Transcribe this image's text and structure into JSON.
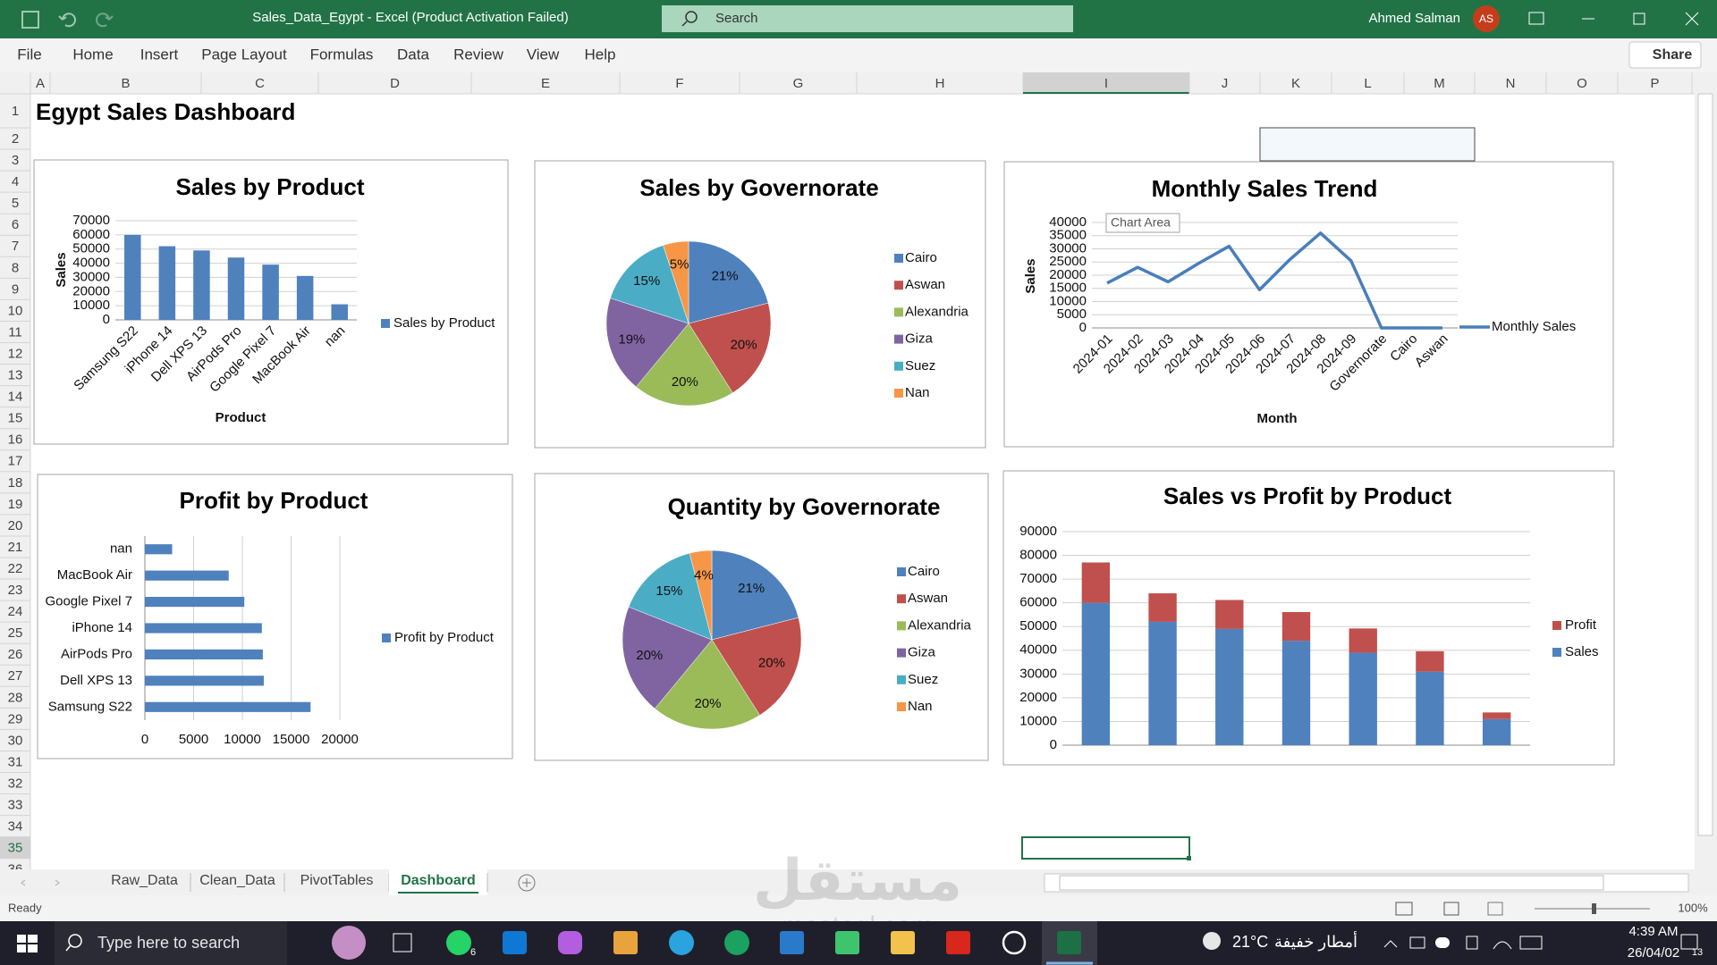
{
  "title_bar": {
    "file_title": "Sales_Data_Egypt   -   Excel (Product Activation Failed)",
    "search": "Search",
    "user_name": "Ahmed Salman",
    "user_initials": "AS"
  },
  "menu": [
    "File",
    "Home",
    "Insert",
    "Page Layout",
    "Formulas",
    "Data",
    "Review",
    "View",
    "Help"
  ],
  "share": "Share",
  "columns": [
    "A",
    "B",
    "C",
    "D",
    "E",
    "F",
    "G",
    "H",
    "I",
    "J",
    "K",
    "L",
    "M",
    "N",
    "O",
    "P"
  ],
  "rows": [
    "1",
    "2",
    "3",
    "4",
    "5",
    "6",
    "7",
    "8",
    "9",
    "10",
    "11",
    "12",
    "13",
    "14",
    "15",
    "16",
    "17",
    "18",
    "19",
    "20",
    "21",
    "22",
    "23",
    "24",
    "25",
    "26",
    "27",
    "28",
    "29",
    "30",
    "31",
    "32",
    "33",
    "34",
    "35",
    "36"
  ],
  "cell_a1": "Egypt Sales Dashboard",
  "charts": [
    {
      "type": "bar",
      "title": "Sales by Product",
      "y_label": "Sales",
      "x_label": "Product",
      "categories": [
        "Samsung S22",
        "iPhone 14",
        "Dell XPS 13",
        "AirPods Pro",
        "Google Pixel 7",
        "MacBook Air",
        "nan"
      ],
      "series": [
        {
          "name": "Sales by Product",
          "color": "#4f81bd",
          "values": [
            60000,
            52000,
            49000,
            44000,
            39000,
            31000,
            11000
          ]
        }
      ],
      "ylim": [
        0,
        70000
      ],
      "yticks": [
        0,
        10000,
        20000,
        30000,
        40000,
        50000,
        60000,
        70000
      ],
      "grid": true
    },
    {
      "type": "pie",
      "title": "Sales by Governorate",
      "categories": [
        "Cairo",
        "Aswan",
        "Alexandria",
        "Giza",
        "Suez",
        "Nan"
      ],
      "values": [
        21,
        20,
        20,
        19,
        15,
        5
      ],
      "value_labels": [
        "21%",
        "20%",
        "20%",
        "19%",
        "15%",
        "5%"
      ],
      "colors": [
        "#4f81bd",
        "#c0504d",
        "#9bbb59",
        "#8064a2",
        "#4bacc6",
        "#f79646"
      ]
    },
    {
      "type": "line",
      "title": "Monthly Sales Trend",
      "y_label": "Sales",
      "x_label": "Month",
      "annotation": "Chart Area",
      "categories": [
        "2024-01",
        "2024-02",
        "2024-03",
        "2024-04",
        "2024-05",
        "2024-06",
        "2024-07",
        "2024-08",
        "2024-09",
        "Governorate",
        "Cairo",
        "Aswan"
      ],
      "series": [
        {
          "name": "Monthly Sales",
          "color": "#4a7ebb",
          "values": [
            17000,
            23000,
            17500,
            24500,
            31000,
            14500,
            26000,
            36000,
            25500,
            0,
            0,
            0
          ]
        }
      ],
      "ylim": [
        0,
        40000
      ],
      "yticks": [
        0,
        5000,
        10000,
        15000,
        20000,
        25000,
        30000,
        35000,
        40000
      ],
      "grid": true
    },
    {
      "type": "barh",
      "title": "Profit by Product",
      "categories": [
        "Samsung S22",
        "Dell XPS 13",
        "AirPods Pro",
        "iPhone 14",
        "Google Pixel 7",
        "MacBook Air",
        "nan"
      ],
      "series": [
        {
          "name": "Profit by Product",
          "color": "#4f81bd",
          "values": [
            17000,
            12200,
            12100,
            12000,
            10200,
            8600,
            2800
          ]
        }
      ],
      "xlim": [
        0,
        20000
      ],
      "xticks": [
        0,
        5000,
        10000,
        15000,
        20000
      ],
      "grid": true
    },
    {
      "type": "pie",
      "title": "Quantity by Governorate",
      "categories": [
        "Cairo",
        "Aswan",
        "Alexandria",
        "Giza",
        "Suez",
        "Nan"
      ],
      "values": [
        21,
        20,
        20,
        20,
        15,
        4
      ],
      "value_labels": [
        "21%",
        "20%",
        "20%",
        "20%",
        "15%",
        "4%"
      ],
      "colors": [
        "#4f81bd",
        "#c0504d",
        "#9bbb59",
        "#8064a2",
        "#4bacc6",
        "#f79646"
      ]
    },
    {
      "type": "stacked_bar",
      "title": "Sales vs Profit by Product",
      "series": [
        {
          "name": "Sales",
          "color": "#4f81bd",
          "values": [
            60000,
            52000,
            49000,
            44000,
            39000,
            31000,
            11000
          ]
        },
        {
          "name": "Profit",
          "color": "#c0504d",
          "values": [
            17000,
            12000,
            12200,
            12100,
            10200,
            8600,
            2800
          ]
        }
      ],
      "ylim": [
        0,
        90000
      ],
      "yticks": [
        0,
        10000,
        20000,
        30000,
        40000,
        50000,
        60000,
        70000,
        80000,
        90000
      ],
      "grid": true
    }
  ],
  "sheet_tabs": [
    "Raw_Data",
    "Clean_Data",
    "PivotTables",
    "Dashboard"
  ],
  "active_tab": 3,
  "status": {
    "ready": "Ready",
    "zoom": "100%"
  },
  "watermark": [
    "مستقل",
    "mostaql.com"
  ],
  "taskbar": {
    "search": "Type here to search",
    "whatsapp_badge": "6",
    "temperature": "21°C",
    "weather": "أمطار خفيفة",
    "time": "4:39 AM",
    "date": "26/04/02",
    "notifications": "13"
  }
}
